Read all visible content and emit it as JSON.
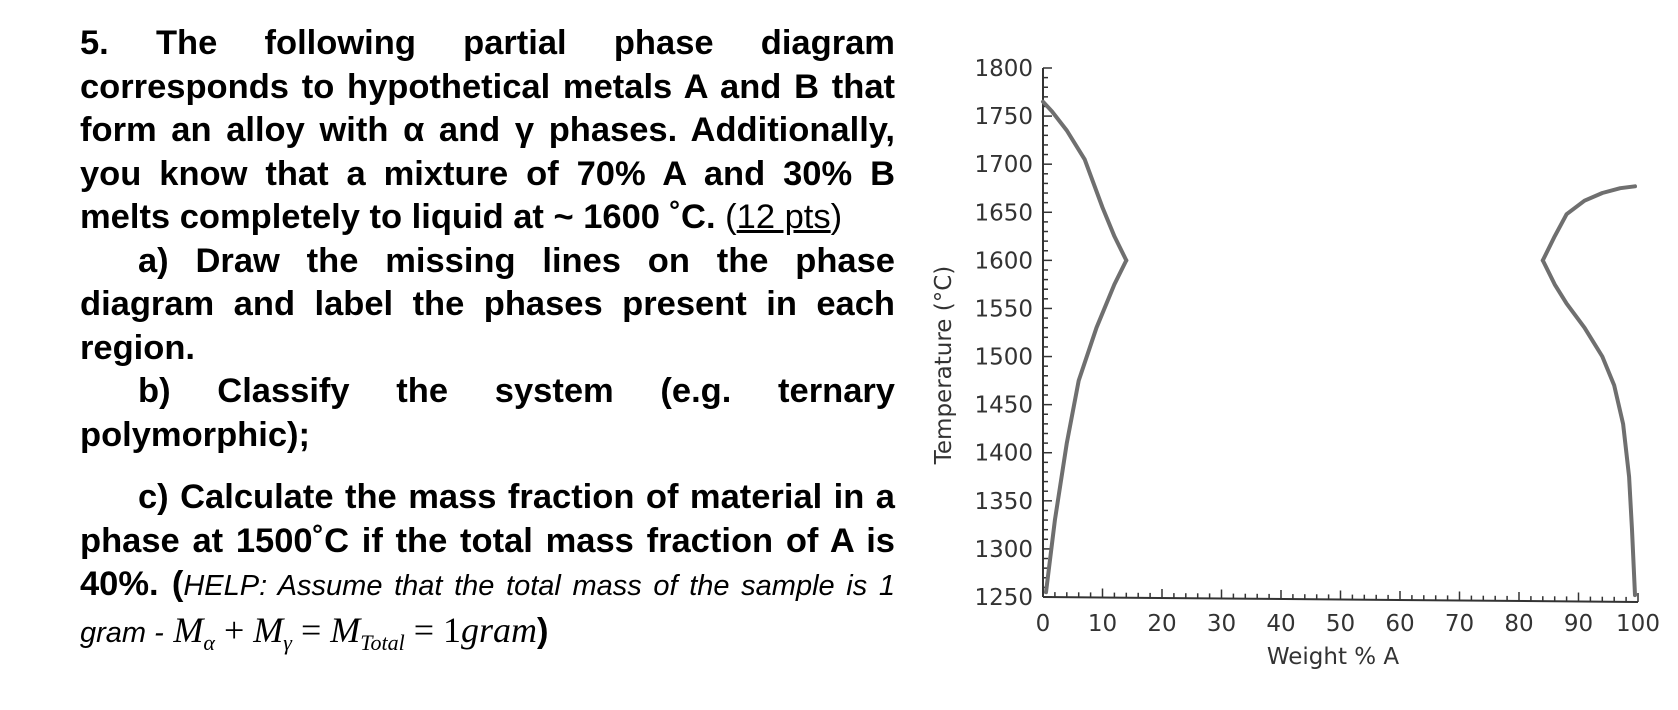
{
  "question": {
    "intro": "5. The following partial phase diagram corresponds to hypothetical metals A and B that form an alloy with α and γ phases. Additionally, you know that a mixture of 70% A and 30% B melts completely to liquid at ~ 1600 ˚C.",
    "points_open": "(",
    "points": "12 pts",
    "points_close": ")",
    "part_a": "a) Draw the missing lines on the phase diagram and label the phases present in each region.",
    "part_b": "b) Classify the system (e.g. ternary polymorphic);",
    "part_c": "c) Calculate the mass fraction of material in a phase at 1500˚C if the total mass fraction of A is 40%.",
    "help_open": "(",
    "help_text": "HELP: Assume that the total mass of the sample is 1 gram -",
    "equation": "Mα + Mγ = MTotal = 1gram",
    "help_close": ")"
  },
  "chart_data": {
    "type": "line",
    "title": "",
    "xlabel": "Weight % A",
    "ylabel": "Temperature (°C)",
    "xlim": [
      0,
      100
    ],
    "ylim": [
      1250,
      1800
    ],
    "xticks": [
      0,
      10,
      20,
      30,
      40,
      50,
      60,
      70,
      80,
      90,
      100
    ],
    "yticks": [
      1250,
      1300,
      1350,
      1400,
      1450,
      1500,
      1550,
      1600,
      1650,
      1700,
      1750,
      1800
    ],
    "line_color": "#6f6f6f",
    "series": [
      {
        "x": [
          0,
          1.5,
          4,
          7,
          10,
          12,
          14
        ],
        "y": [
          1765,
          1755,
          1735,
          1705,
          1655,
          1625,
          1600
        ]
      },
      {
        "x": [
          14,
          12,
          9,
          6,
          4,
          2,
          0.5
        ],
        "y": [
          1600,
          1575,
          1530,
          1475,
          1410,
          1330,
          1255
        ]
      },
      {
        "x": [
          84,
          86,
          88,
          91,
          94,
          97,
          99.5
        ],
        "y": [
          1600,
          1625,
          1648,
          1662,
          1670,
          1675,
          1677
        ]
      },
      {
        "x": [
          84,
          86,
          88,
          91,
          94,
          96,
          97.5,
          98.5,
          99,
          99.5
        ],
        "y": [
          1600,
          1575,
          1555,
          1530,
          1500,
          1470,
          1430,
          1375,
          1320,
          1252
        ]
      }
    ]
  }
}
